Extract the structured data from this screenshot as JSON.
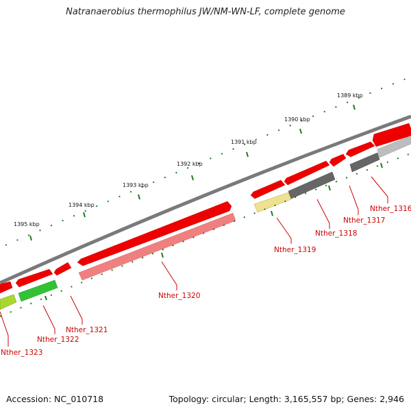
{
  "title": "Natranaerobius thermophilus JW/NM-WN-LF, complete genome",
  "footer": {
    "accession": "Accession: NC_010718",
    "summary": "Topology: circular; Length: 3,165,557 bp; Genes: 2,946"
  },
  "kbp_labels": [
    "1389 kbp",
    "1390 kbp",
    "1391 kbp",
    "1392 kbp",
    "1393 kbp",
    "1394 kbp",
    "1395 kbp"
  ],
  "gene_labels": [
    "Nther_1316",
    "Nther_1317",
    "Nther_1318",
    "Nther_1319",
    "Nther_1320",
    "Nther_1321",
    "Nther_1322",
    "Nther_1323"
  ],
  "colors": {
    "backbone": "#7a7a7a",
    "cds": "#ee0000",
    "cds_pale": "#f08080",
    "gene_label": "#cc0000",
    "tick": "#1a7a1a",
    "gray_dark": "#666666",
    "gray_light": "#bdbdbd",
    "yellow": "#eee290",
    "green": "#33c233",
    "yellowgreen": "#a8d830"
  }
}
